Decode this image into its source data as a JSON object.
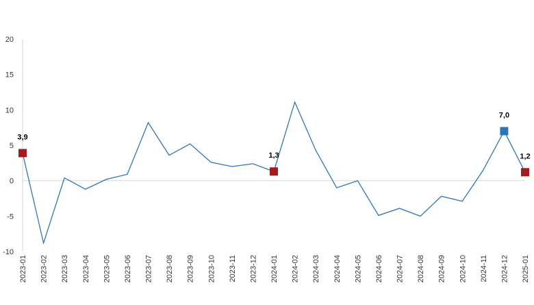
{
  "chart_data": {
    "type": "line",
    "categories": [
      "2023-01",
      "2023-02",
      "2023-03",
      "2023-04",
      "2023-05",
      "2023-06",
      "2023-07",
      "2023-08",
      "2023-09",
      "2023-10",
      "2023-11",
      "2023-12",
      "2024-01",
      "2024-02",
      "2024-03",
      "2024-04",
      "2024-05",
      "2024-06",
      "2024-07",
      "2024-08",
      "2024-09",
      "2024-10",
      "2024-11",
      "2024-12",
      "2025-01"
    ],
    "series": [
      {
        "color": "#2e75b6",
        "values": [
          3.9,
          -8.8,
          0.4,
          -1.2,
          0.2,
          0.9,
          8.2,
          3.6,
          5.2,
          2.6,
          2.0,
          2.4,
          1.3,
          11.1,
          4.3,
          -1.0,
          0.0,
          -4.9,
          -3.9,
          -5.0,
          -2.2,
          -2.9,
          1.5,
          7.0,
          1.2
        ],
        "value_labels": [
          "3,9",
          null,
          null,
          null,
          null,
          null,
          null,
          null,
          null,
          null,
          null,
          null,
          "1,3",
          null,
          null,
          null,
          null,
          null,
          null,
          null,
          null,
          null,
          null,
          "7,0",
          "1,2"
        ],
        "marker_colors": [
          "#a31a1f",
          null,
          null,
          null,
          null,
          null,
          null,
          null,
          null,
          null,
          null,
          null,
          "#a31a1f",
          null,
          null,
          null,
          null,
          null,
          null,
          null,
          null,
          null,
          null,
          "#2e75b6",
          "#a31a1f"
        ]
      }
    ],
    "ylim": [
      -10,
      20
    ],
    "yticks": [
      -10,
      -5,
      0,
      5,
      10,
      15,
      20
    ]
  }
}
